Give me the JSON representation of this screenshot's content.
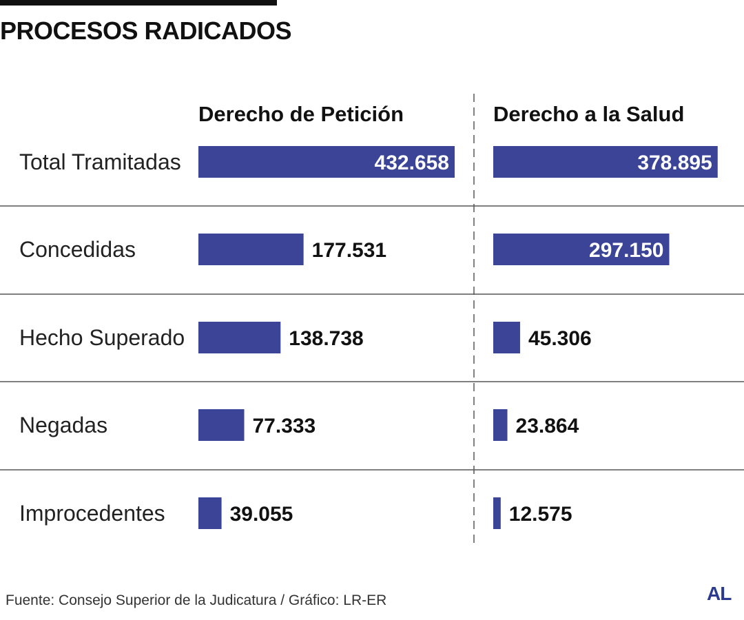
{
  "title": "PROCESOS RADICADOS",
  "source": "Fuente: Consejo Superior de la Judicatura / Gráfico: LR-ER",
  "logo": "AL",
  "colors": {
    "bar": "#3b4496",
    "divider": "#555555",
    "text": "#111111",
    "value_on_bar": "#ffffff"
  },
  "chart_data": {
    "type": "bar",
    "orientation": "horizontal",
    "categories": [
      "Total Tramitadas",
      "Concedidas",
      "Hecho Superado",
      "Negadas",
      "Improcedentes"
    ],
    "series": [
      {
        "name": "Derecho de Petición",
        "values": [
          432658,
          177531,
          138738,
          77333,
          39055
        ],
        "value_labels": [
          "432.658",
          "177.531",
          "138.738",
          "77.333",
          "39.055"
        ]
      },
      {
        "name": "Derecho a la Salud",
        "values": [
          378895,
          297150,
          45306,
          23864,
          12575
        ],
        "value_labels": [
          "378.895",
          "297.150",
          "45.306",
          "23.864",
          "12.575"
        ]
      }
    ],
    "grid": false,
    "legend": "none"
  }
}
